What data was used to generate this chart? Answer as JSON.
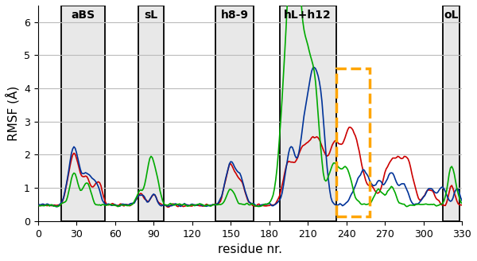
{
  "xlim": [
    0,
    330
  ],
  "ylim": [
    0,
    6.5
  ],
  "yticks": [
    0,
    1,
    2,
    3,
    4,
    5,
    6
  ],
  "xticks": [
    0,
    30,
    60,
    90,
    120,
    150,
    180,
    210,
    240,
    270,
    300,
    330
  ],
  "xlabel": "residue nr.",
  "ylabel": "RMSF (Å)",
  "regions": [
    {
      "label": "aBS",
      "xmin": 18,
      "xmax": 52
    },
    {
      "label": "sL",
      "xmin": 78,
      "xmax": 98
    },
    {
      "label": "h8-9",
      "xmin": 138,
      "xmax": 168
    },
    {
      "label": "hL+h12",
      "xmin": 188,
      "xmax": 232
    },
    {
      "label": "oL",
      "xmin": 315,
      "xmax": 328
    }
  ],
  "orange_box": {
    "xmin": 232,
    "xmax": 258,
    "ymin": 0.15,
    "ymax": 4.6
  },
  "line_colors": [
    "#003399",
    "#cc0000",
    "#00aa00"
  ],
  "line_width": 1.2,
  "figsize": [
    6.0,
    3.28
  ],
  "dpi": 100,
  "background_color": "#ffffff",
  "region_fill": "#e8e8e8",
  "grid_color": "#bbbbbb"
}
